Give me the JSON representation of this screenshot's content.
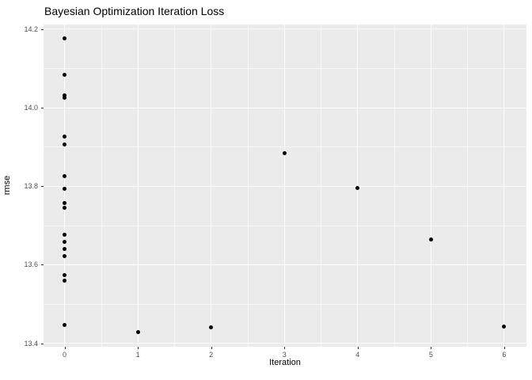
{
  "title": "Bayesian Optimization Iteration Loss",
  "colors": {
    "panel_background": "#EBEBEB",
    "grid": "#FFFFFF",
    "point": "#000000",
    "tick_label": "#4D4D4D",
    "tick_mark": "#333333",
    "title_text": "#000000"
  },
  "chart_data": {
    "type": "scatter",
    "title": "Bayesian Optimization Iteration Loss",
    "xlabel": "Iteration",
    "ylabel": "rmse",
    "xlim": [
      -0.287,
      6.303
    ],
    "ylim": [
      13.391,
      14.212
    ],
    "grid": "on",
    "legend_position": "none",
    "x_ticks": [
      0,
      1,
      2,
      3,
      4,
      5,
      6
    ],
    "x_tick_labels": [
      "0",
      "1",
      "2",
      "3",
      "4",
      "5",
      "6"
    ],
    "y_ticks": [
      13.4,
      13.6,
      13.8,
      14.0,
      14.2
    ],
    "y_tick_labels": [
      "13.4",
      "13.6",
      "13.8",
      "14.0",
      "14.2"
    ],
    "x_minor_ticks": [
      0.5,
      1.5,
      2.5,
      3.5,
      4.5,
      5.5
    ],
    "y_minor_ticks": [
      13.5,
      13.7,
      13.9,
      14.1
    ],
    "points": [
      {
        "x": 0,
        "rmse": 14.176
      },
      {
        "x": 0,
        "rmse": 14.084
      },
      {
        "x": 0,
        "rmse": 14.032
      },
      {
        "x": 0,
        "rmse": 14.025
      },
      {
        "x": 0,
        "rmse": 13.926
      },
      {
        "x": 0,
        "rmse": 13.907
      },
      {
        "x": 0,
        "rmse": 13.825
      },
      {
        "x": 0,
        "rmse": 13.794
      },
      {
        "x": 0,
        "rmse": 13.757
      },
      {
        "x": 0,
        "rmse": 13.745
      },
      {
        "x": 0,
        "rmse": 13.677
      },
      {
        "x": 0,
        "rmse": 13.658
      },
      {
        "x": 0,
        "rmse": 13.64
      },
      {
        "x": 0,
        "rmse": 13.621
      },
      {
        "x": 0,
        "rmse": 13.573
      },
      {
        "x": 0,
        "rmse": 13.559
      },
      {
        "x": 0,
        "rmse": 13.447
      },
      {
        "x": 1,
        "rmse": 13.428
      },
      {
        "x": 2,
        "rmse": 13.441
      },
      {
        "x": 3,
        "rmse": 13.885
      },
      {
        "x": 4,
        "rmse": 13.796
      },
      {
        "x": 5,
        "rmse": 13.665
      },
      {
        "x": 6,
        "rmse": 13.443
      }
    ]
  }
}
